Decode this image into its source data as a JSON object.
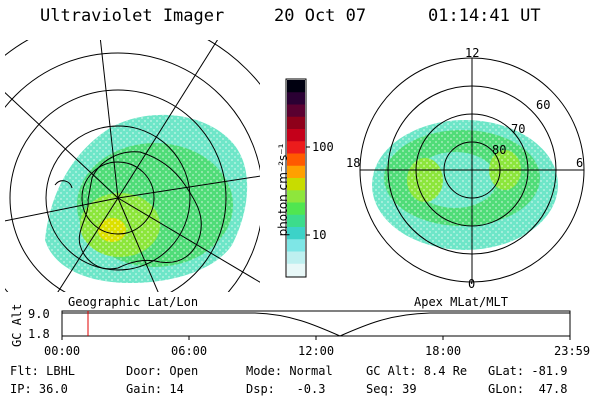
{
  "header": {
    "instrument": "Ultraviolet Imager",
    "date": "20 Oct 07",
    "time": "01:14:41 UT"
  },
  "left_map": {
    "caption": "Geographic Lat/Lon"
  },
  "right_map": {
    "caption": "Apex MLat/MLT",
    "mlt_labels": [
      "12",
      "18",
      "6",
      "0"
    ],
    "lat_labels": [
      "60",
      "70",
      "80"
    ]
  },
  "colorbar": {
    "unit_label": "photon cm⁻²s⁻¹",
    "ticks": [
      "100",
      "10"
    ],
    "colors": [
      "#000010",
      "#2a0033",
      "#5a0030",
      "#8e001a",
      "#c4001a",
      "#ec1c1c",
      "#ff5a00",
      "#ffa000",
      "#c8dc00",
      "#8ee63c",
      "#50e650",
      "#3cdc8c",
      "#3cd2c8",
      "#7ee6e6",
      "#bef0f0",
      "#e8f8f8"
    ]
  },
  "timeline": {
    "ylabel": "GC Alt",
    "y_ticks": [
      "9.0",
      "1.8"
    ],
    "x_ticks": [
      "00:00",
      "06:00",
      "12:00",
      "18:00",
      "23:59"
    ],
    "marker_color": "#e00000"
  },
  "footer": {
    "filter": "Flt: LBHL",
    "door": "Door: Open",
    "mode": "Mode: Normal",
    "gc_alt": "GC Alt: 8.4 Re",
    "glat": "GLat: -81.9",
    "ip": "IP: 36.0",
    "gain": "Gain: 14",
    "dsp": "Dsp:   -0.3",
    "seq": "Seq: 39",
    "glon": "GLon:  47.8"
  }
}
